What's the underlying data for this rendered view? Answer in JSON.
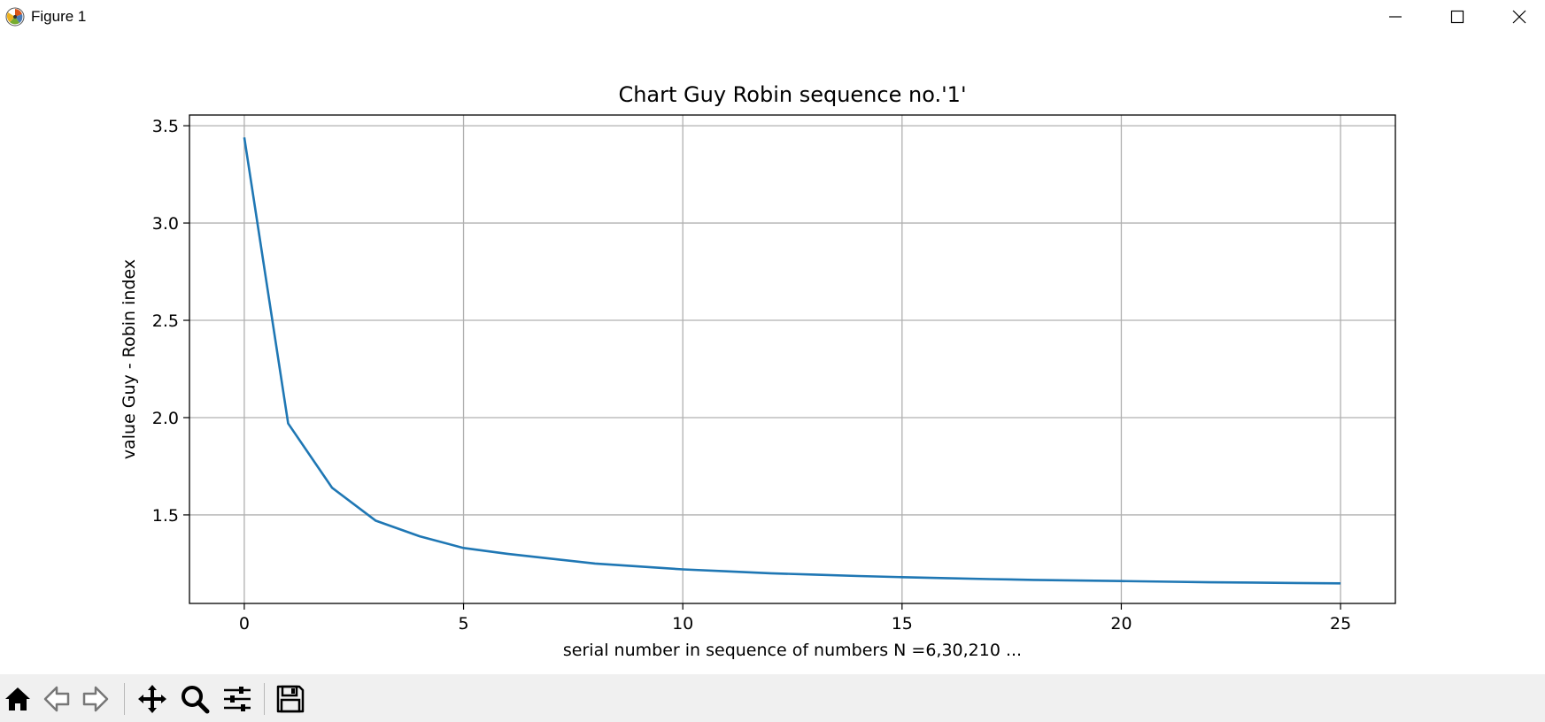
{
  "window": {
    "title": "Figure 1"
  },
  "toolbar": {
    "buttons": [
      "home-icon",
      "back-arrow-icon",
      "forward-arrow-icon",
      "pan-icon",
      "zoom-icon",
      "configure-subplots-icon",
      "save-icon"
    ]
  },
  "colors": {
    "line": "#1f77b4",
    "grid": "#b0b0b0",
    "toolbar_bg": "#f0f0f0"
  },
  "chart_data": {
    "type": "line",
    "title": "Chart Guy Robin sequence no.'1'",
    "xlabel": "serial number in sequence of numbers N =6,30,210 ...",
    "ylabel": "value Guy - Robin index",
    "xlim": [
      -1.25,
      26.25
    ],
    "ylim": [
      1.045,
      3.555
    ],
    "xticks": [
      0,
      5,
      10,
      15,
      20,
      25
    ],
    "xtick_labels": [
      "0",
      "5",
      "10",
      "15",
      "20",
      "25"
    ],
    "yticks": [
      1.5,
      2.0,
      2.5,
      3.0,
      3.5
    ],
    "ytick_labels": [
      "1.5",
      "2.0",
      "2.5",
      "3.0",
      "3.5"
    ],
    "grid": true,
    "series": [
      {
        "x": [
          0,
          1,
          2,
          3,
          4,
          5,
          6,
          7,
          8,
          9,
          10,
          11,
          12,
          13,
          14,
          15,
          16,
          17,
          18,
          19,
          20,
          21,
          22,
          23,
          24,
          25
        ],
        "y": [
          3.44,
          1.97,
          1.64,
          1.47,
          1.39,
          1.33,
          1.3,
          1.275,
          1.25,
          1.235,
          1.22,
          1.21,
          1.2,
          1.193,
          1.186,
          1.18,
          1.175,
          1.17,
          1.166,
          1.163,
          1.16,
          1.157,
          1.154,
          1.152,
          1.15,
          1.148
        ]
      }
    ]
  }
}
